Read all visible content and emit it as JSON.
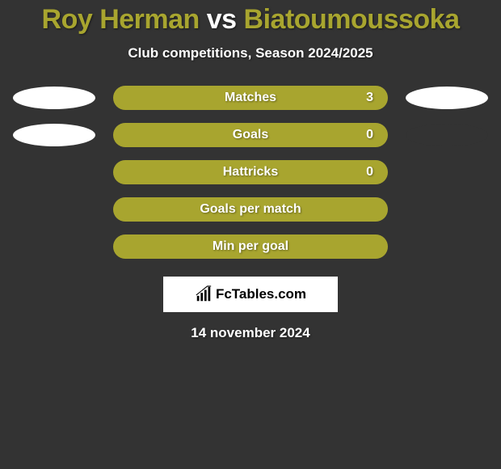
{
  "title": {
    "player1": "Roy Herman",
    "vs": "vs",
    "player2": "Biatoumoussoka",
    "color1": "#a8a52f",
    "colorVs": "#ffffff",
    "color2": "#a8a52f"
  },
  "subtitle": "Club competitions, Season 2024/2025",
  "stats": [
    {
      "label": "Matches",
      "value": "3",
      "show_value": true,
      "bar_color": "#a8a52f",
      "avatar1_color": "#ffffff",
      "avatar2_color": "#ffffff"
    },
    {
      "label": "Goals",
      "value": "0",
      "show_value": true,
      "bar_color": "#a8a52f",
      "avatar1_color": "#ffffff",
      "avatar2_color": "#333333"
    },
    {
      "label": "Hattricks",
      "value": "0",
      "show_value": true,
      "bar_color": "#a8a52f",
      "avatar1_color": null,
      "avatar2_color": null
    },
    {
      "label": "Goals per match",
      "value": "",
      "show_value": false,
      "bar_color": "#a8a52f",
      "avatar1_color": null,
      "avatar2_color": null
    },
    {
      "label": "Min per goal",
      "value": "",
      "show_value": false,
      "bar_color": "#a8a52f",
      "avatar1_color": null,
      "avatar2_color": null
    }
  ],
  "brand": "FcTables.com",
  "date": "14 november 2024",
  "colors": {
    "background": "#333333",
    "bar": "#a8a52f",
    "text": "#ffffff"
  }
}
